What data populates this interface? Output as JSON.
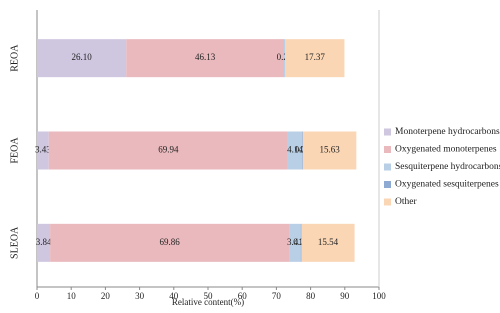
{
  "chart_data": {
    "type": "stacked-barh",
    "x_label": "Relative content(%)",
    "categories": [
      "REOA",
      "FEOA",
      "SLEOA"
    ],
    "series": [
      {
        "name": "Monoterpene hydrocarbons",
        "color": "#cfc6e0",
        "values": [
          26.1,
          3.43,
          3.84
        ],
        "value_labels": [
          "26.10",
          "3.43",
          "3.84"
        ]
      },
      {
        "name": "Oxygenated monoterpenes",
        "color": "#e9b9bd",
        "values": [
          46.13,
          69.94,
          69.86
        ],
        "value_labels": [
          "46.13",
          "69.94",
          "69.86"
        ]
      },
      {
        "name": "Sesquiterpene hydrocarbons",
        "color": "#b8cfe6",
        "values": [
          0.29,
          4.14,
          3.41
        ],
        "value_labels": [
          "0.29",
          "4.14",
          "3.41"
        ]
      },
      {
        "name": "Oxygenated sesquiterpenes",
        "color": "#8eaad2",
        "values": [
          null,
          0.23,
          0.21
        ],
        "value_labels": [
          null,
          "0.23",
          "0.21"
        ]
      },
      {
        "name": "Other",
        "color": "#fad6b4",
        "values": [
          17.37,
          15.63,
          15.54
        ],
        "value_labels": [
          "17.37",
          "15.63",
          "15.54"
        ]
      }
    ],
    "xlim": [
      0,
      100
    ],
    "xticks": [
      0,
      10,
      20,
      30,
      40,
      50,
      60,
      70,
      80,
      90,
      100
    ]
  }
}
